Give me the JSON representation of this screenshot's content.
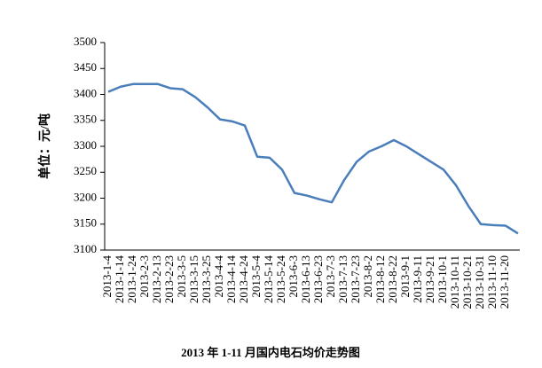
{
  "chart_data": {
    "type": "line",
    "title": "2013 年 1-11 月国内电石均价走势图",
    "y_label": "单位：元/吨",
    "categories": [
      "2013-1-4",
      "2013-1-14",
      "2013-1-24",
      "2013-2-3",
      "2013-2-13",
      "2013-2-23",
      "2013-3-5",
      "2013-3-15",
      "2013-3-25",
      "2013-4-4",
      "2013-4-14",
      "2013-4-24",
      "2013-5-4",
      "2013-5-14",
      "2013-5-24",
      "2013-6-3",
      "2013-6-13",
      "2013-6-23",
      "2013-7-3",
      "2013-7-13",
      "2013-7-23",
      "2013-8-2",
      "2013-8-12",
      "2013-8-22",
      "2013-9-1",
      "2013-9-11",
      "2013-9-21",
      "2013-10-1",
      "2013-10-11",
      "2013-10-21",
      "2013-10-31",
      "2013-11-10",
      "2013-11-20",
      null
    ],
    "series": [
      {
        "color": "#4a7ebb",
        "values": [
          3405,
          3415,
          3420,
          3420,
          3420,
          3412,
          3410,
          3395,
          3375,
          3352,
          3348,
          3340,
          3280,
          3278,
          3255,
          3210,
          3205,
          3198,
          3192,
          3235,
          3270,
          3290,
          3300,
          3312,
          3300,
          3285,
          3270,
          3255,
          3225,
          3185,
          3150,
          3148,
          3147,
          3132
        ]
      }
    ],
    "ylim": [
      3100,
      3500
    ],
    "yticks": [
      3100,
      3150,
      3200,
      3250,
      3300,
      3350,
      3400,
      3450,
      3500
    ]
  }
}
